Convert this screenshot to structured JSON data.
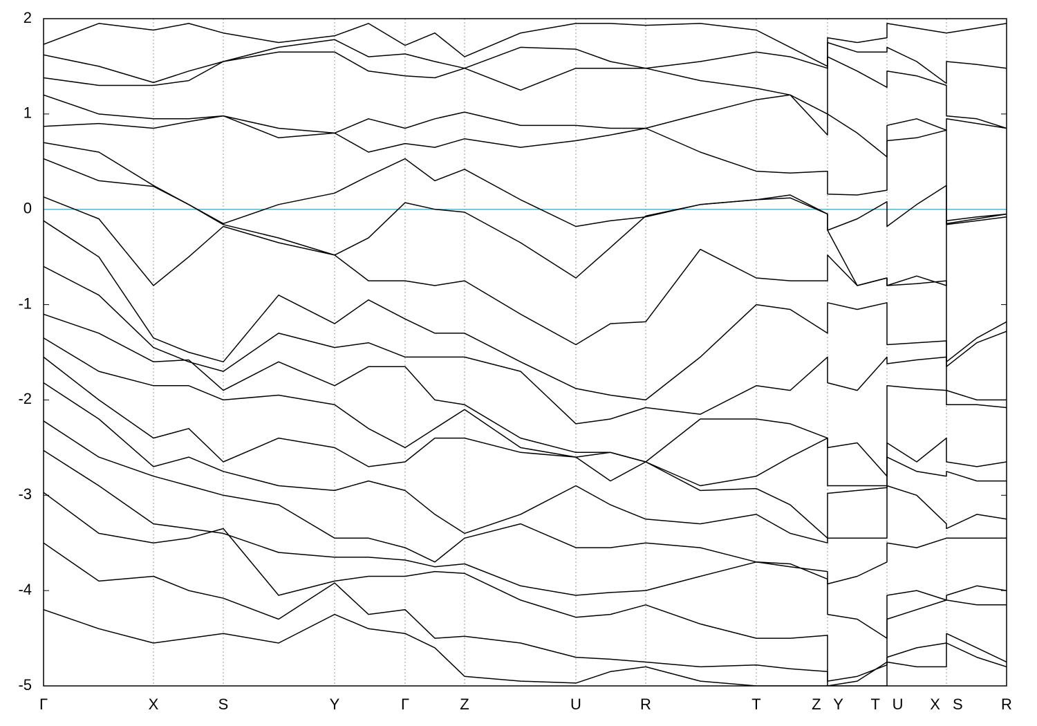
{
  "chart_data": {
    "type": "line",
    "xlim": [
      0,
      13.93
    ],
    "ylim": [
      -5,
      2
    ],
    "yticks": [
      -5,
      -4,
      -3,
      -2,
      -1,
      0,
      1,
      2
    ],
    "xticks": [
      {
        "value": 0,
        "label": "Γ"
      },
      {
        "value": 1.59,
        "label": "X"
      },
      {
        "value": 2.6,
        "label": "S"
      },
      {
        "value": 4.21,
        "label": "Y"
      },
      {
        "value": 5.23,
        "label": "Γ"
      },
      {
        "value": 6.09,
        "label": "Z"
      },
      {
        "value": 7.7,
        "label": "U"
      },
      {
        "value": 8.71,
        "label": "R"
      },
      {
        "value": 10.31,
        "label": "T"
      },
      {
        "value": 11.34,
        "label": "Z Y"
      },
      {
        "value": 12.2,
        "label": "T U"
      },
      {
        "value": 13.06,
        "label": "X S"
      },
      {
        "value": 13.93,
        "label": "R"
      }
    ],
    "grid": true,
    "reference_line": {
      "value": 0,
      "color": "#5ab4c8"
    },
    "x": [
      0,
      0.8,
      1.59,
      2.1,
      2.6,
      3.4,
      4.21,
      4.7,
      5.23,
      5.66,
      6.09,
      6.9,
      7.7,
      8.2,
      8.71,
      9.5,
      10.31,
      10.8,
      11.34,
      11.34,
      11.77,
      12.2,
      12.2,
      12.63,
      13.06,
      13.06,
      13.5,
      13.93
    ],
    "series": [
      {
        "color": "#000000",
        "values": [
          1.73,
          1.95,
          1.88,
          1.95,
          1.85,
          1.75,
          1.82,
          1.95,
          1.72,
          1.85,
          1.6,
          1.85,
          1.95,
          1.95,
          1.93,
          1.95,
          1.88,
          1.7,
          1.5,
          1.8,
          1.75,
          1.8,
          1.95,
          1.9,
          1.85,
          1.85,
          1.9,
          1.95
        ]
      },
      {
        "color": "#000000",
        "values": [
          1.62,
          1.5,
          1.33,
          1.45,
          1.55,
          1.7,
          1.78,
          1.6,
          1.63,
          1.55,
          1.48,
          1.7,
          1.68,
          1.55,
          1.48,
          1.55,
          1.65,
          1.6,
          1.48,
          1.75,
          1.65,
          1.65,
          1.7,
          1.55,
          1.32,
          1.55,
          1.52,
          1.48
        ]
      },
      {
        "color": "#000000",
        "values": [
          1.38,
          1.3,
          1.3,
          1.35,
          1.55,
          1.65,
          1.65,
          1.45,
          1.4,
          1.38,
          1.48,
          1.25,
          1.48,
          1.48,
          1.48,
          1.35,
          1.27,
          1.2,
          1.0,
          1.6,
          1.45,
          1.28,
          1.45,
          1.4,
          1.3,
          0.98,
          0.95,
          0.85
        ]
      },
      {
        "color": "#000000",
        "values": [
          1.2,
          1.0,
          0.95,
          0.95,
          0.98,
          0.85,
          0.8,
          0.95,
          0.85,
          0.95,
          1.02,
          0.88,
          0.88,
          0.85,
          0.85,
          1.0,
          1.15,
          1.2,
          0.78,
          1.0,
          0.8,
          0.55,
          0.88,
          0.95,
          0.83,
          0.95,
          0.9,
          0.85
        ]
      },
      {
        "color": "#000000",
        "values": [
          0.87,
          0.9,
          0.85,
          0.92,
          0.98,
          0.75,
          0.8,
          0.6,
          0.69,
          0.65,
          0.74,
          0.65,
          0.72,
          0.78,
          0.85,
          0.6,
          0.4,
          0.38,
          0.4,
          0.16,
          0.15,
          0.2,
          0.72,
          0.75,
          0.83,
          -0.15,
          -0.1,
          -0.05
        ]
      },
      {
        "color": "#000000",
        "values": [
          0.7,
          0.6,
          0.25,
          0.05,
          -0.15,
          0.05,
          0.17,
          0.35,
          0.53,
          0.3,
          0.42,
          0.1,
          -0.18,
          -0.12,
          -0.08,
          0.05,
          0.1,
          0.15,
          -0.05,
          -0.22,
          -0.1,
          0.08,
          -0.18,
          0.05,
          0.25,
          -0.16,
          -0.12,
          -0.08
        ]
      },
      {
        "color": "#000000",
        "values": [
          0.53,
          0.3,
          0.24,
          0.05,
          -0.16,
          -0.3,
          -0.48,
          -0.3,
          0.07,
          0.0,
          -0.03,
          -0.35,
          -0.72,
          -0.4,
          -0.07,
          0.05,
          0.1,
          0.12,
          -0.05,
          -0.22,
          -0.8,
          -0.72,
          -0.8,
          -0.7,
          -0.8,
          -0.12,
          -0.08,
          -0.05
        ]
      },
      {
        "color": "#000000",
        "values": [
          0.13,
          -0.1,
          -0.8,
          -0.5,
          -0.18,
          -0.35,
          -0.48,
          -0.75,
          -0.75,
          -0.8,
          -0.75,
          -1.1,
          -1.42,
          -1.2,
          -1.18,
          -0.42,
          -0.72,
          -0.75,
          -0.75,
          -0.48,
          -0.8,
          -0.72,
          -0.8,
          -0.78,
          -0.75,
          -1.6,
          -1.35,
          -1.18
        ]
      },
      {
        "color": "#000000",
        "values": [
          -0.12,
          -0.5,
          -1.35,
          -1.5,
          -1.6,
          -0.9,
          -1.2,
          -0.95,
          -1.15,
          -1.3,
          -1.3,
          -1.6,
          -1.88,
          -1.95,
          -2.0,
          -1.55,
          -1.0,
          -1.05,
          -1.3,
          -0.98,
          -1.05,
          -0.98,
          -1.42,
          -1.4,
          -1.38,
          -1.65,
          -1.4,
          -1.28
        ]
      },
      {
        "color": "#000000",
        "values": [
          -0.6,
          -0.9,
          -1.45,
          -1.6,
          -1.7,
          -1.3,
          -1.45,
          -1.4,
          -1.55,
          -1.55,
          -1.55,
          -1.7,
          -2.25,
          -2.2,
          -2.08,
          -2.15,
          -1.85,
          -1.9,
          -1.55,
          -1.82,
          -1.9,
          -1.55,
          -1.62,
          -1.58,
          -1.55,
          -1.9,
          -2.0,
          -2.0
        ]
      },
      {
        "color": "#000000",
        "values": [
          -1.1,
          -1.3,
          -1.6,
          -1.58,
          -1.9,
          -1.6,
          -1.85,
          -1.65,
          -1.65,
          -2.0,
          -2.05,
          -2.4,
          -2.55,
          -2.55,
          -2.65,
          -2.2,
          -2.2,
          -2.25,
          -2.4,
          -2.5,
          -2.45,
          -2.8,
          -1.85,
          -1.88,
          -1.9,
          -2.05,
          -2.05,
          -2.08
        ]
      },
      {
        "color": "#000000",
        "values": [
          -1.35,
          -1.7,
          -1.85,
          -1.85,
          -2.0,
          -1.95,
          -2.05,
          -2.3,
          -2.5,
          -2.3,
          -2.1,
          -2.5,
          -2.6,
          -2.55,
          -2.65,
          -2.9,
          -2.8,
          -2.6,
          -2.4,
          -2.9,
          -2.9,
          -2.9,
          -2.45,
          -2.65,
          -2.4,
          -2.65,
          -2.7,
          -2.65
        ]
      },
      {
        "color": "#000000",
        "values": [
          -1.55,
          -2.0,
          -2.4,
          -2.3,
          -2.65,
          -2.4,
          -2.5,
          -2.7,
          -2.65,
          -2.4,
          -2.4,
          -2.55,
          -2.6,
          -2.85,
          -2.65,
          -2.95,
          -2.93,
          -3.1,
          -3.45,
          -2.98,
          -2.95,
          -2.92,
          -2.6,
          -2.75,
          -2.8,
          -2.75,
          -2.85,
          -2.85
        ]
      },
      {
        "color": "#000000",
        "values": [
          -1.82,
          -2.2,
          -2.7,
          -2.6,
          -2.75,
          -2.9,
          -2.95,
          -2.85,
          -2.95,
          -3.2,
          -3.4,
          -3.2,
          -2.9,
          -3.1,
          -3.25,
          -3.3,
          -3.2,
          -3.4,
          -3.5,
          -3.45,
          -3.45,
          -3.45,
          -2.9,
          -3.0,
          -3.3,
          -3.35,
          -3.2,
          -3.25
        ]
      },
      {
        "color": "#000000",
        "values": [
          -2.22,
          -2.6,
          -2.8,
          -2.9,
          -3.0,
          -3.1,
          -3.45,
          -3.45,
          -3.55,
          -3.7,
          -3.45,
          -3.3,
          -3.55,
          -3.55,
          -3.5,
          -3.55,
          -3.7,
          -3.75,
          -3.8,
          -3.93,
          -3.85,
          -3.7,
          -3.5,
          -3.55,
          -3.45,
          -3.45,
          -3.45,
          -3.45
        ]
      },
      {
        "color": "#000000",
        "values": [
          -2.53,
          -2.9,
          -3.3,
          -3.35,
          -3.4,
          -3.6,
          -3.65,
          -3.65,
          -3.68,
          -3.75,
          -3.72,
          -3.95,
          -4.05,
          -4.02,
          -4.0,
          -3.85,
          -3.7,
          -3.72,
          -3.88,
          -4.25,
          -4.3,
          -4.5,
          -4.05,
          -4.0,
          -4.1,
          -4.1,
          -4.15,
          -4.15
        ]
      },
      {
        "color": "#000000",
        "values": [
          -2.97,
          -3.4,
          -3.5,
          -3.45,
          -3.35,
          -4.05,
          -3.9,
          -3.85,
          -3.85,
          -3.8,
          -3.82,
          -4.1,
          -4.28,
          -4.25,
          -4.15,
          -4.35,
          -4.5,
          -4.5,
          -4.47,
          -5.0,
          -4.95,
          -4.75,
          -4.3,
          -4.2,
          -4.1,
          -4.05,
          -3.95,
          -4.0
        ]
      },
      {
        "color": "#000000",
        "values": [
          -3.5,
          -3.9,
          -3.85,
          -4.0,
          -4.08,
          -4.3,
          -3.92,
          -4.25,
          -4.2,
          -4.5,
          -4.48,
          -4.55,
          -4.7,
          -4.72,
          -4.75,
          -4.8,
          -4.78,
          -4.82,
          -4.85,
          -4.95,
          -4.9,
          -4.78,
          -4.7,
          -4.6,
          -4.55,
          -4.45,
          -4.6,
          -4.75
        ]
      },
      {
        "color": "#000000",
        "values": [
          -4.2,
          -4.4,
          -4.55,
          -4.5,
          -4.45,
          -4.55,
          -4.25,
          -4.4,
          -4.45,
          -4.6,
          -4.9,
          -4.95,
          -4.97,
          -4.85,
          -4.8,
          -4.95,
          -5.0,
          -5.0,
          -5.0,
          -5.0,
          -5.0,
          -5.0,
          -4.75,
          -4.8,
          -4.8,
          -4.55,
          -4.7,
          -4.8
        ]
      }
    ]
  }
}
